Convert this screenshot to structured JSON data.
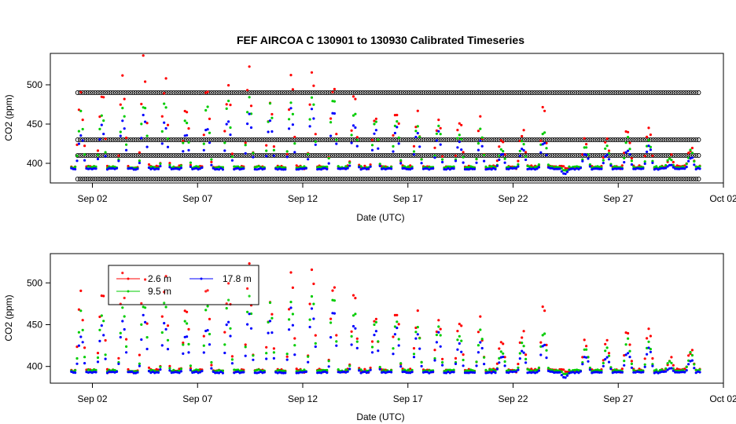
{
  "chart_data": [
    {
      "type": "scatter",
      "title": "FEF   AIRCOA  C    130901  to  130930   Calibrated Timeseries",
      "xlabel": "Date (UTC)",
      "ylabel": "CO2 (ppm)",
      "xlim": [
        "2013-08-31",
        "2013-10-02"
      ],
      "ylim": [
        375,
        540
      ],
      "x_ticks": [
        "Sep 02",
        "Sep 07",
        "Sep 12",
        "Sep 17",
        "Sep 22",
        "Sep 27",
        "Oct 02"
      ],
      "y_ticks": [
        400,
        450,
        500
      ],
      "grid": false,
      "legend": null,
      "calibration_levels_ppm": [
        380,
        410,
        430,
        490
      ],
      "calibration_color": "#000000",
      "series": [
        {
          "legend_label": "2.6 m",
          "color": "#ff0000"
        },
        {
          "legend_label": "9.5 m",
          "color": "#00cc00"
        },
        {
          "legend_label": "17.8 m",
          "color": "#0000ff"
        }
      ],
      "daily_peaks": {
        "2.6 m": [
          485,
          495,
          500,
          530,
          510,
          480,
          490,
          500,
          505,
          485,
          505,
          510,
          500,
          480,
          470,
          475,
          460,
          465,
          455,
          450,
          430,
          445,
          465,
          395,
          430,
          430,
          445,
          445,
          410,
          420,
          430
        ],
        "9.5 m": [
          460,
          465,
          470,
          480,
          475,
          460,
          470,
          480,
          485,
          470,
          485,
          490,
          485,
          465,
          455,
          460,
          450,
          450,
          440,
          440,
          420,
          430,
          445,
          390,
          420,
          420,
          430,
          430,
          405,
          415,
          420
        ],
        "17.8 m": [
          440,
          450,
          455,
          465,
          455,
          440,
          450,
          460,
          465,
          455,
          470,
          475,
          470,
          455,
          445,
          450,
          440,
          440,
          430,
          430,
          415,
          420,
          430,
          388,
          415,
          415,
          420,
          425,
          400,
          410,
          410
        ]
      },
      "night_baseline_ppm": 395
    },
    {
      "type": "scatter",
      "title": "",
      "xlabel": "Date (UTC)",
      "ylabel": "CO2 (ppm)",
      "xlim": [
        "2013-08-31",
        "2013-10-02"
      ],
      "ylim": [
        380,
        535
      ],
      "x_ticks": [
        "Sep 02",
        "Sep 07",
        "Sep 12",
        "Sep 17",
        "Sep 22",
        "Sep 27",
        "Oct 02"
      ],
      "y_ticks": [
        400,
        450,
        500
      ],
      "grid": false,
      "legend": "top-left",
      "legend_entries": [
        {
          "label": "2.6 m",
          "color": "#ff0000"
        },
        {
          "label": "9.5 m",
          "color": "#00cc00"
        },
        {
          "label": "17.8 m",
          "color": "#0000ff"
        }
      ]
    }
  ]
}
